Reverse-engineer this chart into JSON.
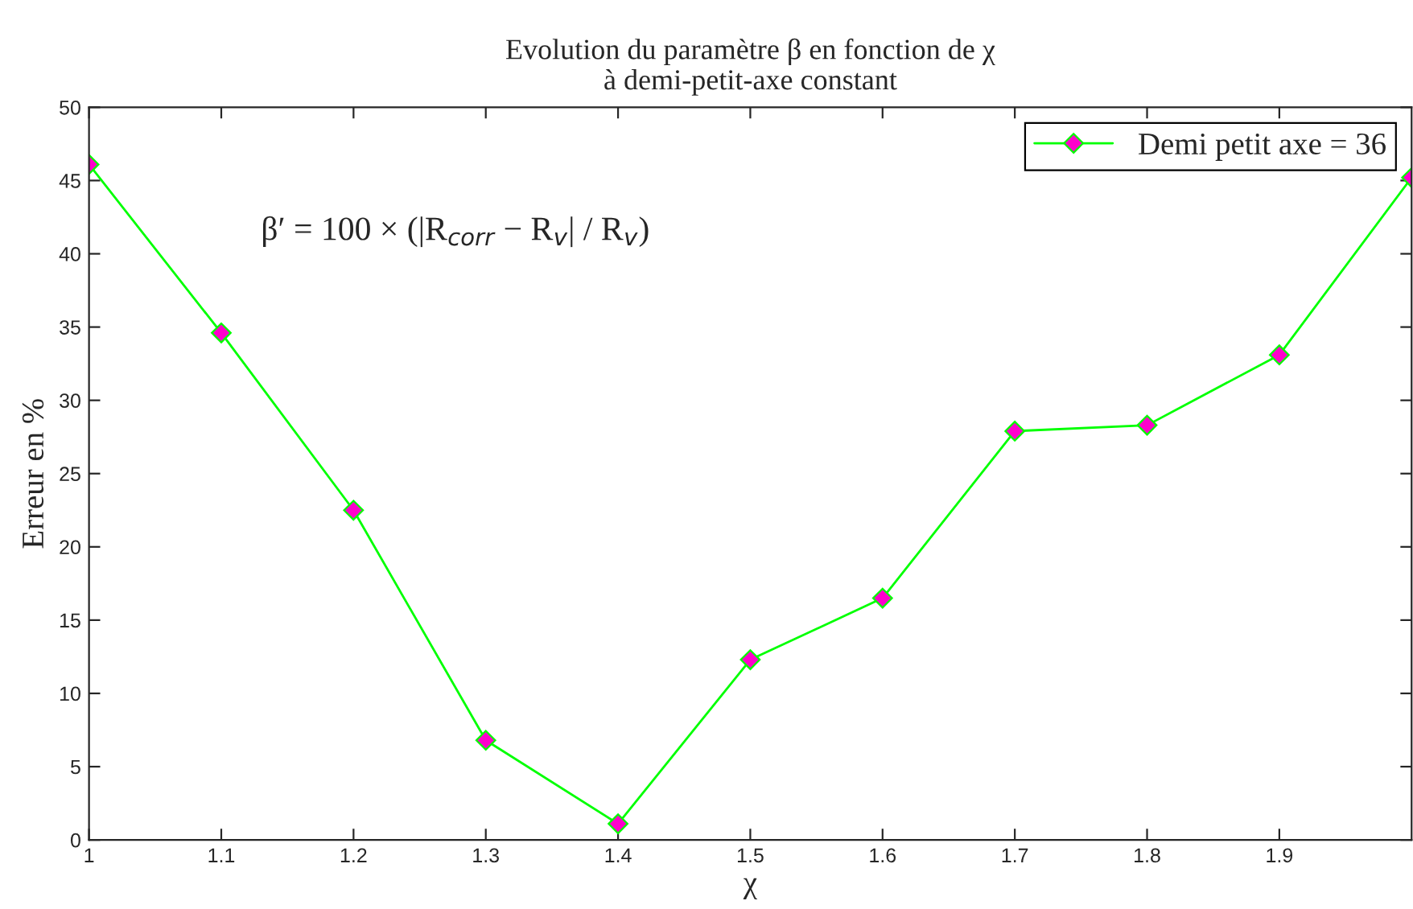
{
  "chart_data": {
    "type": "line",
    "title": "Evolution du paramètre β en fonction de χ\nà demi-petit-axe constant",
    "xlabel": "χ",
    "ylabel": "Erreur en %",
    "annotations": [
      "β′ = 100 × (|R$_{corr}$ − R$_{v}$| / R$_{v}$)"
    ],
    "x": [
      1,
      1.1,
      1.2,
      1.3,
      1.4,
      1.5,
      1.6,
      1.7,
      1.8,
      1.9,
      2.0
    ],
    "series": [
      {
        "name": "Demi petit axe = 36",
        "color": "#00ff00",
        "values": [
          46.1,
          34.6,
          22.5,
          6.8,
          1.1,
          12.3,
          16.5,
          27.9,
          28.3,
          33.1,
          45.2
        ]
      }
    ],
    "xlim": [
      1,
      2
    ],
    "xticks": [
      1,
      1.1,
      1.2,
      1.3,
      1.4,
      1.5,
      1.6,
      1.7,
      1.8,
      1.9
    ],
    "ylim": [
      0,
      50
    ],
    "yticks": [
      0,
      5,
      10,
      15,
      20,
      25,
      30,
      35,
      40,
      45,
      50
    ],
    "grid": false,
    "legend": "top right",
    "marker": "diamond",
    "line_style": "solid"
  }
}
